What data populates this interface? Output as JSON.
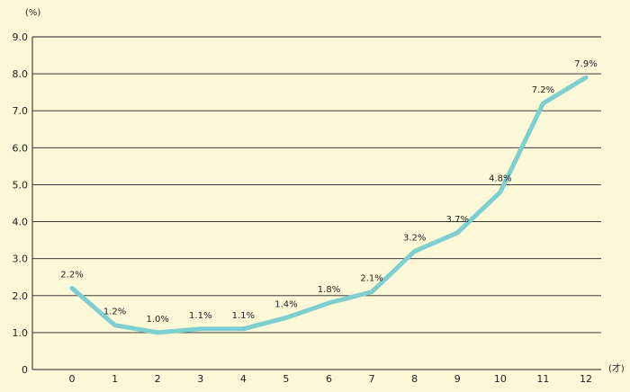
{
  "chart_data": {
    "type": "line",
    "title": "",
    "xlabel": "(才)",
    "ylabel": "(%)",
    "x": [
      "0",
      "1",
      "2",
      "3",
      "4",
      "5",
      "6",
      "7",
      "8",
      "9",
      "10",
      "11",
      "12"
    ],
    "series": [
      {
        "values": [
          2.2,
          1.2,
          1.0,
          1.1,
          1.1,
          1.4,
          1.8,
          2.1,
          3.2,
          3.7,
          4.8,
          7.2,
          7.9
        ],
        "value_labels": [
          "2.2%",
          "1.2%",
          "1.0%",
          "1.1%",
          "1.1%",
          "1.4%",
          "1.8%",
          "2.1%",
          "3.2%",
          "3.7%",
          "4.8%",
          "7.2%",
          "7.9%"
        ]
      }
    ],
    "y_ticks": [
      "0",
      "1.0",
      "2.0",
      "3.0",
      "4.0",
      "5.0",
      "6.0",
      "7.0",
      "8.0",
      "9.0"
    ],
    "ylim": [
      0,
      9
    ],
    "grid": true,
    "legend": "none",
    "colors": {
      "background": "#fdf8d8",
      "line": "#7ecfd0",
      "grid": "#222222",
      "text": "#222222"
    }
  }
}
